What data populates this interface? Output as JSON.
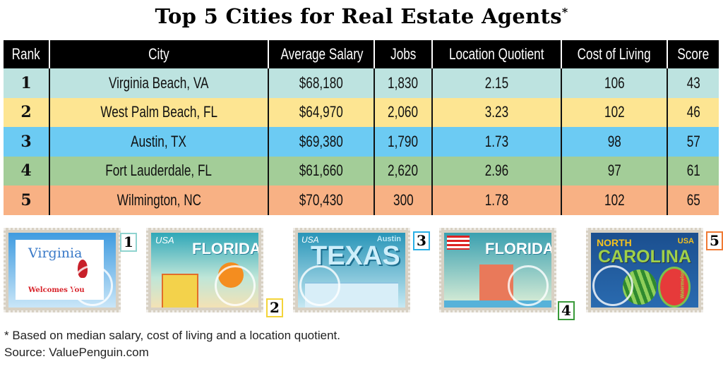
{
  "title": "Top 5 Cities for Real Estate Agents",
  "title_marker": "*",
  "chart_data": {
    "type": "table",
    "columns": [
      "Rank",
      "City",
      "Average Salary",
      "Jobs",
      "Location Quotient",
      "Cost of Living",
      "Score"
    ],
    "rows": [
      {
        "rank": "1",
        "city": "Virginia Beach, VA",
        "salary": "$68,180",
        "jobs": "1,830",
        "lq": "2.15",
        "col": "106",
        "score": "43",
        "color": "#bde3e0"
      },
      {
        "rank": "2",
        "city": "West Palm Beach, FL",
        "salary": "$64,970",
        "jobs": "2,060",
        "lq": "3.23",
        "col": "102",
        "score": "46",
        "color": "#fde592"
      },
      {
        "rank": "3",
        "city": "Austin, TX",
        "salary": "$69,380",
        "jobs": "1,790",
        "lq": "1.73",
        "col": "98",
        "score": "57",
        "color": "#6ccbf3"
      },
      {
        "rank": "4",
        "city": "Fort Lauderdale, FL",
        "salary": "$61,660",
        "jobs": "2,620",
        "lq": "2.96",
        "col": "97",
        "score": "61",
        "color": "#a3cd98"
      },
      {
        "rank": "5",
        "city": "Wilmington, NC",
        "salary": "$70,430",
        "jobs": "300",
        "lq": "1.78",
        "col": "102",
        "score": "65",
        "color": "#f8b184"
      }
    ]
  },
  "stamps": [
    {
      "number": "1",
      "badge_color": "#8fd3cf",
      "texts": {
        "state": "Virginia",
        "welcome": "Welcomes You"
      }
    },
    {
      "number": "2",
      "badge_color": "#f4d43a",
      "texts": {
        "usa": "USA",
        "state": "FLORIDA"
      }
    },
    {
      "number": "3",
      "badge_color": "#2ab0e6",
      "texts": {
        "usa": "USA",
        "city": "Austin",
        "state": "TEXAS"
      }
    },
    {
      "number": "4",
      "badge_color": "#3a9a3a",
      "texts": {
        "state": "FLORIDA"
      }
    },
    {
      "number": "5",
      "badge_color": "#f07a34",
      "texts": {
        "north": "NORTH",
        "state": "CAROLINA",
        "usa": "USA",
        "fruit": "Watermelon"
      }
    }
  ],
  "footnote": "* Based on median salary, cost of living and a location quotient.",
  "source": "Source: ValuePenguin.com"
}
